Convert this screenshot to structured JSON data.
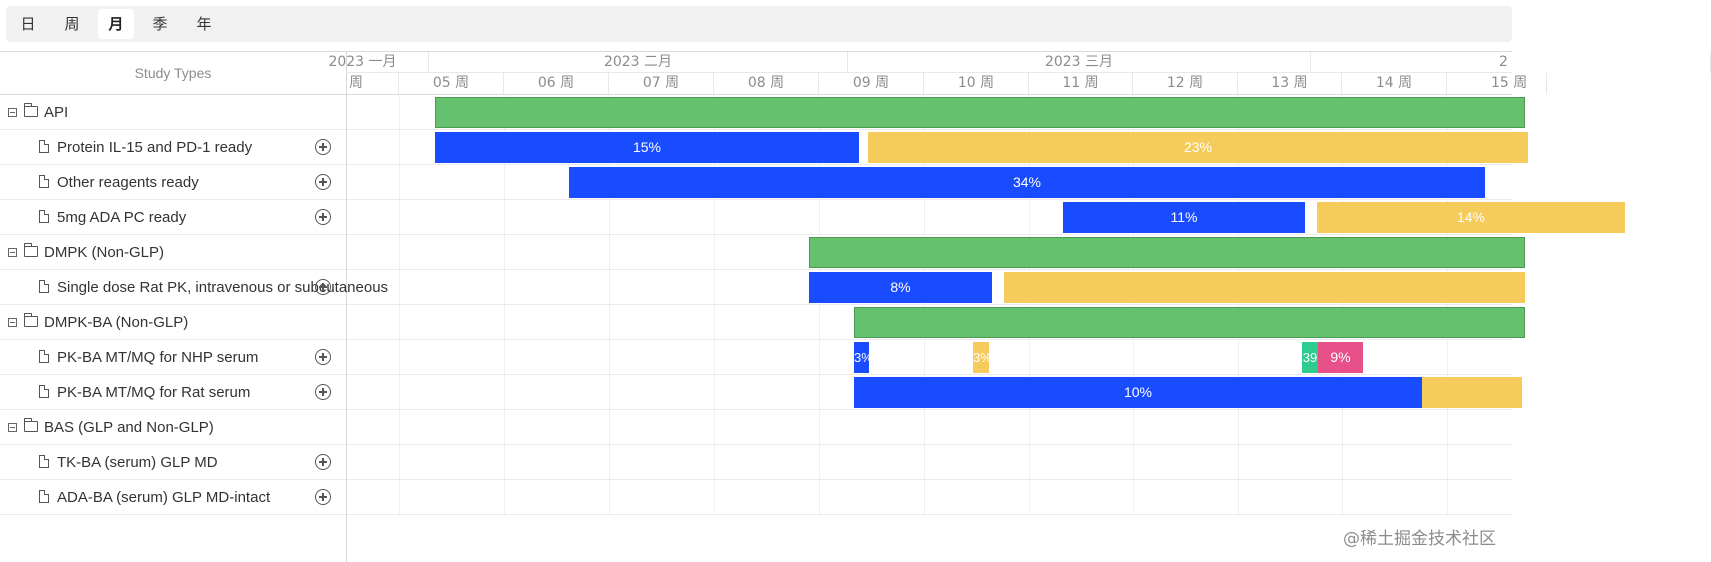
{
  "toolbar": {
    "tabs": [
      {
        "label": "日",
        "active": false
      },
      {
        "label": "周",
        "active": false
      },
      {
        "label": "月",
        "active": true
      },
      {
        "label": "季",
        "active": false
      },
      {
        "label": "年",
        "active": false
      }
    ]
  },
  "grid": {
    "header": "Study Types",
    "rows": [
      {
        "type": "group",
        "label": "API"
      },
      {
        "type": "task",
        "label": "Protein IL-15 and PD-1 ready"
      },
      {
        "type": "task",
        "label": "Other reagents ready"
      },
      {
        "type": "task",
        "label": "5mg ADA PC ready"
      },
      {
        "type": "group",
        "label": "DMPK (Non-GLP)"
      },
      {
        "type": "task",
        "label": "Single dose Rat PK, intravenous or subcutaneous"
      },
      {
        "type": "group",
        "label": "DMPK-BA (Non-GLP)"
      },
      {
        "type": "task",
        "label": "PK-BA MT/MQ for NHP serum"
      },
      {
        "type": "task",
        "label": "PK-BA MT/MQ for Rat serum"
      },
      {
        "type": "group",
        "label": "BAS (GLP and Non-GLP)"
      },
      {
        "type": "task",
        "label": "TK-BA (serum) GLP MD"
      },
      {
        "type": "task",
        "label": "ADA-BA (serum) GLP MD-intact"
      }
    ]
  },
  "timeline": {
    "months": [
      "2023 一月",
      "2023 二月",
      "2023 三月",
      "2"
    ],
    "weeks": [
      "周",
      "05 周",
      "06 周",
      "07 周",
      "08 周",
      "09 周",
      "10 周",
      "11 周",
      "12 周",
      "13 周",
      "14 周",
      "15 周"
    ]
  },
  "bars": [
    {
      "row": 0,
      "kind": "summary",
      "label": "",
      "color": "#66c16e"
    },
    {
      "row": 1,
      "kind": "progress",
      "label": "15%",
      "color": "#1a4cff"
    },
    {
      "row": 1,
      "kind": "remaining",
      "label": "23%",
      "color": "#f5cb5c"
    },
    {
      "row": 2,
      "kind": "progress",
      "label": "34%",
      "color": "#1a4cff"
    },
    {
      "row": 3,
      "kind": "progress",
      "label": "11%",
      "color": "#1a4cff"
    },
    {
      "row": 3,
      "kind": "remaining",
      "label": "14%",
      "color": "#f5cb5c"
    },
    {
      "row": 4,
      "kind": "summary",
      "label": "",
      "color": "#66c16e"
    },
    {
      "row": 5,
      "kind": "progress",
      "label": "8%",
      "color": "#1a4cff"
    },
    {
      "row": 5,
      "kind": "remaining",
      "label": "",
      "color": "#f5cb5c"
    },
    {
      "row": 6,
      "kind": "summary",
      "label": "",
      "color": "#66c16e"
    },
    {
      "row": 7,
      "kind": "progress",
      "label": "3%",
      "color": "#1a4cff"
    },
    {
      "row": 7,
      "kind": "remaining",
      "label": "3%",
      "color": "#f5cb5c"
    },
    {
      "row": 7,
      "kind": "extra",
      "label": "39",
      "color": "#2ecc8f"
    },
    {
      "row": 7,
      "kind": "extra",
      "label": "9%",
      "color": "#e8508a"
    },
    {
      "row": 8,
      "kind": "progress",
      "label": "10%",
      "color": "#1a4cff"
    },
    {
      "row": 8,
      "kind": "remaining",
      "label": "",
      "color": "#f5cb5c"
    }
  ],
  "watermark": "@稀土掘金技术社区"
}
